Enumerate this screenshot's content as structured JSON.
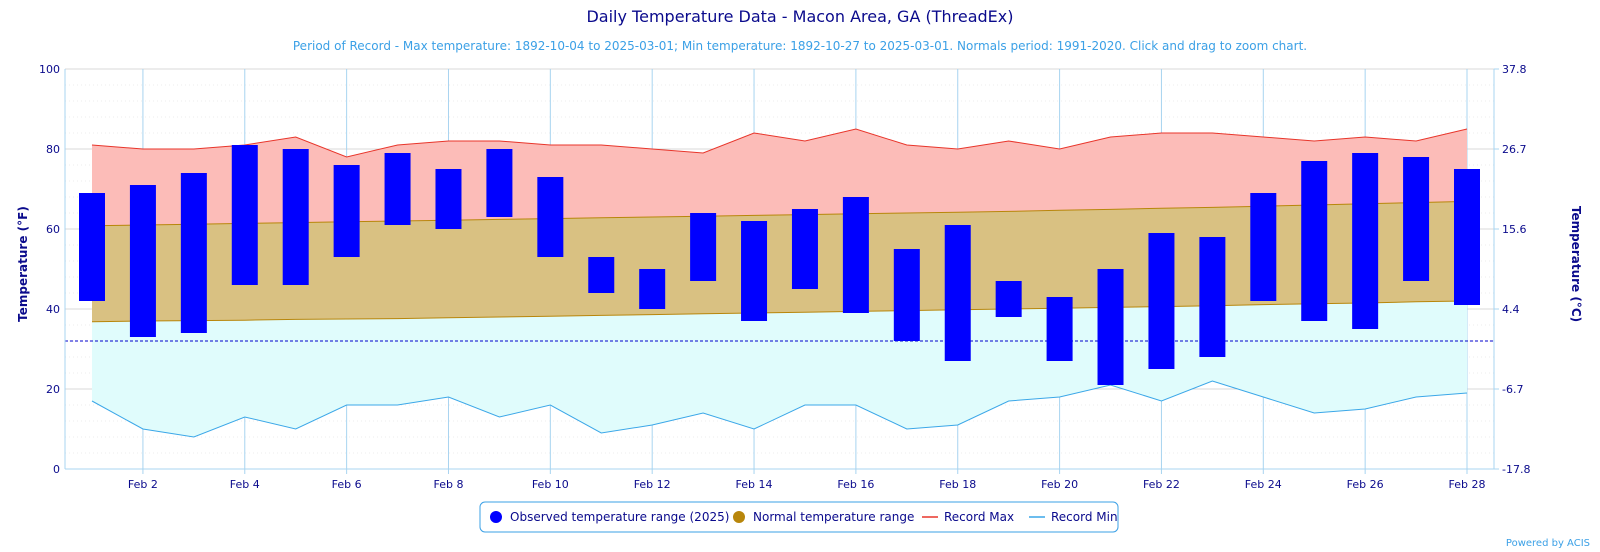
{
  "chart_data": {
    "type": "bar",
    "title": "Daily Temperature Data - Macon Area, GA (ThreadEx)",
    "subtitle": "Period of Record - Max temperature: 1892-10-04 to 2025-03-01; Min temperature: 1892-10-27 to 2025-03-01. Normals period: 1991-2020. Click and drag to zoom chart.",
    "ylabel_left": "Temperature (°F)",
    "ylabel_right": "Temperature (°C)",
    "ylim": [
      0,
      100
    ],
    "y_ticks_left": [
      "0",
      "20",
      "40",
      "60",
      "80",
      "100"
    ],
    "y_ticks_right": [
      "-17.8",
      "-6.7",
      "4.4",
      "15.6",
      "26.7",
      "37.8"
    ],
    "x_tick_labels": [
      "Feb 2",
      "Feb 4",
      "Feb 6",
      "Feb 8",
      "Feb 10",
      "Feb 12",
      "Feb 14",
      "Feb 16",
      "Feb 18",
      "Feb 20",
      "Feb 22",
      "Feb 24",
      "Feb 26",
      "Feb 28"
    ],
    "x_tick_days": [
      2,
      4,
      6,
      8,
      10,
      12,
      14,
      16,
      18,
      20,
      22,
      24,
      26,
      28
    ],
    "days": [
      1,
      2,
      3,
      4,
      5,
      6,
      7,
      8,
      9,
      10,
      11,
      12,
      13,
      14,
      15,
      16,
      17,
      18,
      19,
      20,
      21,
      22,
      23,
      24,
      25,
      26,
      27,
      28
    ],
    "freezing_line_f": 32,
    "series": [
      {
        "name": "Observed temperature range (2025)",
        "color": "#0000ff",
        "low": [
          42,
          33,
          34,
          46,
          46,
          53,
          61,
          60,
          63,
          53,
          44,
          40,
          47,
          37,
          45,
          39,
          32,
          27,
          38,
          27,
          21,
          25,
          28,
          42,
          37,
          35,
          47,
          41
        ],
        "high": [
          69,
          71,
          74,
          81,
          80,
          76,
          79,
          75,
          80,
          73,
          53,
          50,
          64,
          62,
          65,
          68,
          55,
          61,
          47,
          43,
          50,
          59,
          58,
          69,
          77,
          79,
          78,
          75
        ]
      },
      {
        "name": "Normal temperature range",
        "color": "#b8860b",
        "low": [
          36.8,
          37.0,
          37.1,
          37.2,
          37.4,
          37.5,
          37.6,
          37.8,
          38.0,
          38.2,
          38.4,
          38.6,
          38.8,
          39.0,
          39.2,
          39.4,
          39.6,
          39.8,
          40.0,
          40.2,
          40.4,
          40.6,
          40.8,
          41.1,
          41.3,
          41.5,
          41.8,
          42.0
        ],
        "high": [
          60.8,
          61.0,
          61.2,
          61.4,
          61.6,
          61.8,
          62.0,
          62.2,
          62.4,
          62.6,
          62.8,
          63.0,
          63.2,
          63.4,
          63.6,
          63.8,
          64.0,
          64.2,
          64.4,
          64.7,
          64.9,
          65.2,
          65.4,
          65.7,
          66.0,
          66.3,
          66.6,
          66.9
        ]
      },
      {
        "name": "Record Max",
        "color": "#e8352a",
        "values": [
          81,
          80,
          80,
          81,
          83,
          78,
          81,
          82,
          82,
          81,
          81,
          80,
          79,
          84,
          82,
          85,
          81,
          80,
          82,
          80,
          83,
          84,
          84,
          83,
          82,
          83,
          82,
          85
        ]
      },
      {
        "name": "Record Min",
        "color": "#3ba7e8",
        "values": [
          17,
          10,
          8,
          13,
          10,
          16,
          16,
          18,
          13,
          16,
          9,
          11,
          14,
          10,
          16,
          16,
          10,
          11,
          17,
          18,
          21,
          17,
          22,
          18,
          14,
          15,
          18,
          19
        ]
      }
    ],
    "credit": "Powered by ACIS"
  }
}
